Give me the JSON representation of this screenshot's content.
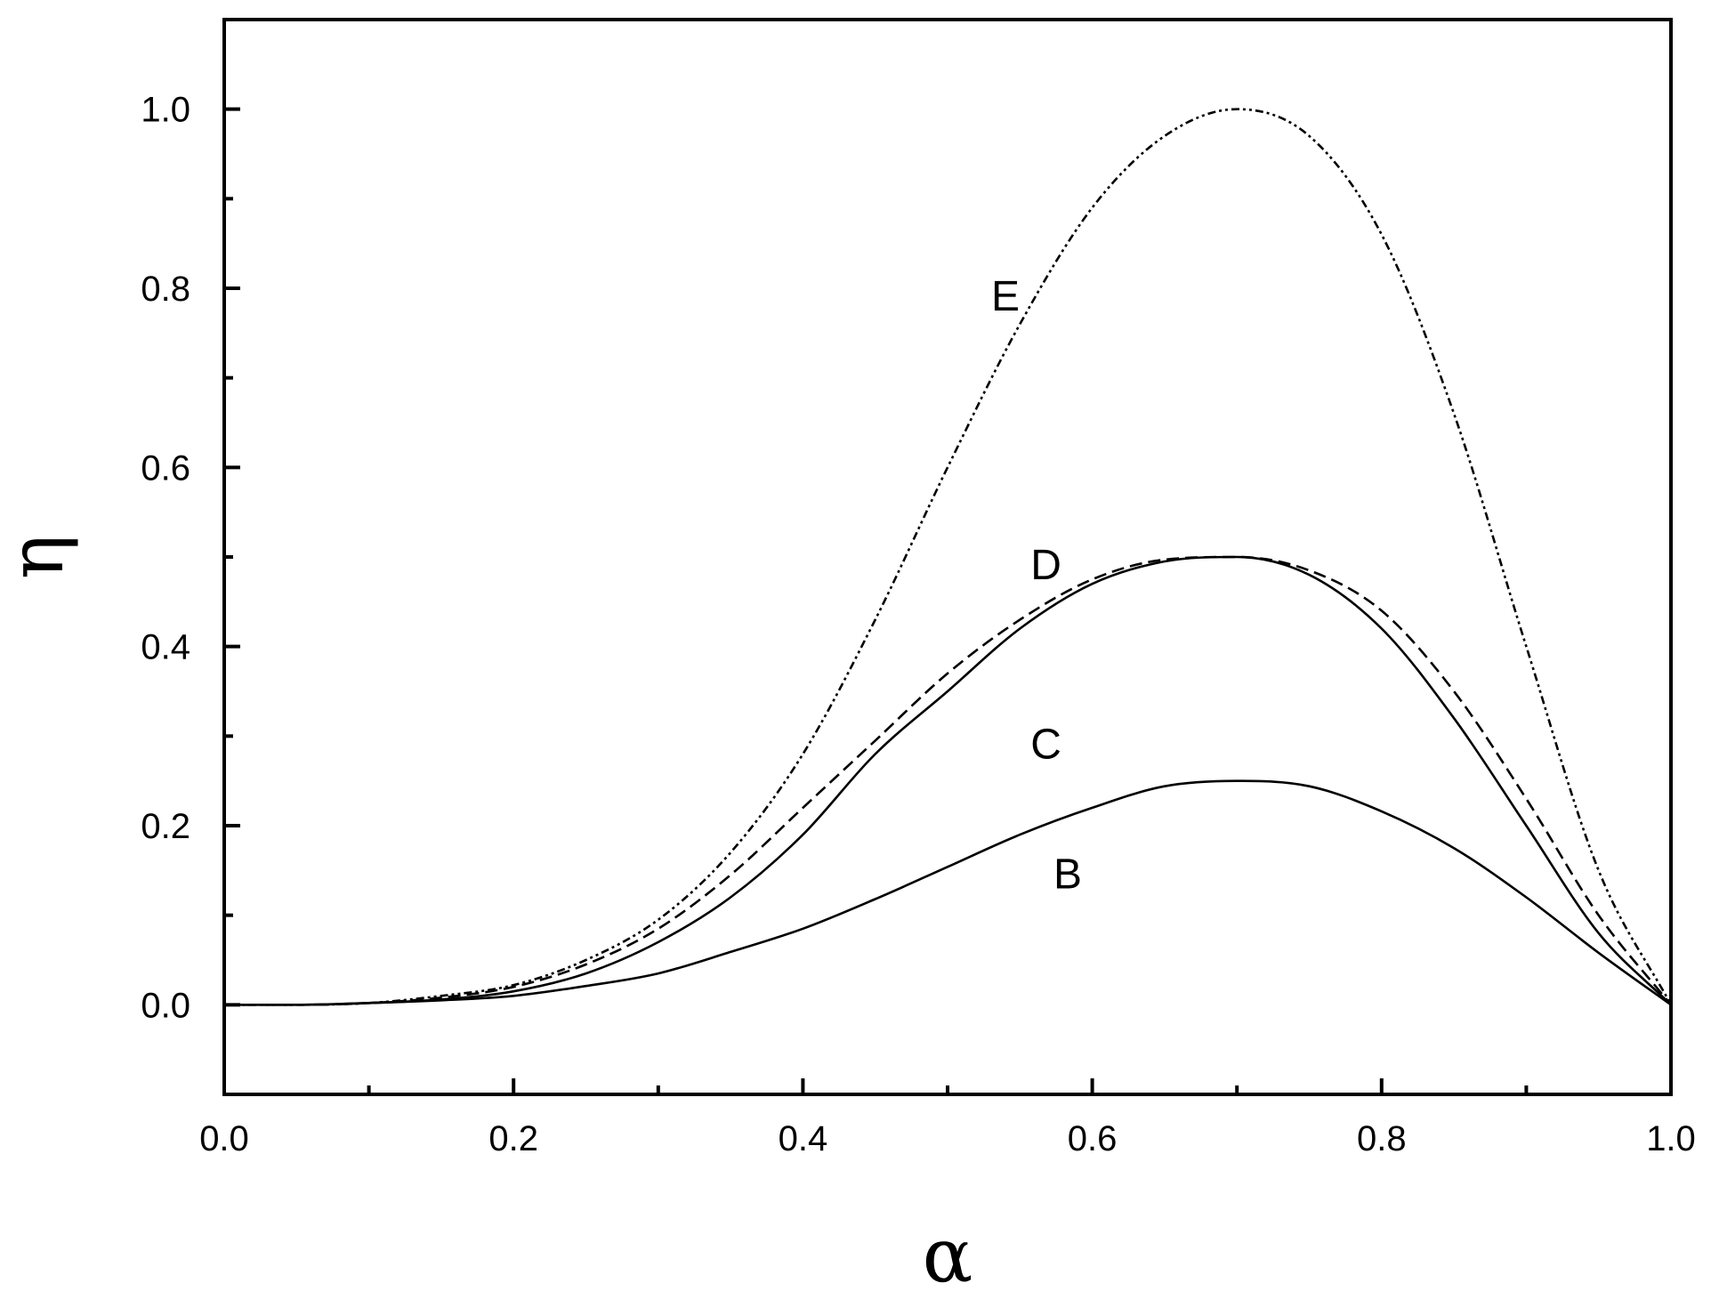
{
  "chart_data": {
    "type": "line",
    "title": "",
    "xlabel": "α",
    "ylabel": "η",
    "xlim": [
      0.0,
      1.0
    ],
    "ylim": [
      -0.1,
      1.1
    ],
    "x_ticks": [
      0.0,
      0.2,
      0.4,
      0.6,
      0.8,
      1.0
    ],
    "x_tick_labels": [
      "0.0",
      "0.2",
      "0.4",
      "0.6",
      "0.8",
      "1.0"
    ],
    "x_minor_ticks": [
      0.1,
      0.3,
      0.5,
      0.7,
      0.9
    ],
    "y_ticks": [
      0.0,
      0.2,
      0.4,
      0.6,
      0.8,
      1.0
    ],
    "y_tick_labels": [
      "0.0",
      "0.2",
      "0.4",
      "0.6",
      "0.8",
      "1.0"
    ],
    "y_minor_ticks": [
      -0.1,
      0.1,
      0.3,
      0.5,
      0.7,
      0.9,
      1.1
    ],
    "grid": false,
    "legend": "none",
    "x": [
      0.0,
      0.05,
      0.1,
      0.15,
      0.2,
      0.25,
      0.3,
      0.35,
      0.4,
      0.45,
      0.5,
      0.55,
      0.6,
      0.65,
      0.7,
      0.75,
      0.8,
      0.85,
      0.9,
      0.95,
      1.0
    ],
    "series": [
      {
        "name": "B",
        "style": "solid",
        "color": "#000000",
        "values": [
          0.0,
          0.0,
          0.002,
          0.005,
          0.01,
          0.021,
          0.035,
          0.059,
          0.085,
          0.118,
          0.154,
          0.19,
          0.22,
          0.244,
          0.25,
          0.244,
          0.216,
          0.175,
          0.12,
          0.058,
          0.0
        ]
      },
      {
        "name": "C",
        "style": "solid",
        "color": "#000000",
        "values": [
          0.0,
          0.0,
          0.002,
          0.006,
          0.015,
          0.035,
          0.07,
          0.12,
          0.19,
          0.28,
          0.35,
          0.42,
          0.47,
          0.495,
          0.5,
          0.48,
          0.42,
          0.32,
          0.2,
          0.08,
          0.0
        ]
      },
      {
        "name": "D",
        "style": "dashed",
        "color": "#000000",
        "values": [
          0.0,
          0.0,
          0.002,
          0.008,
          0.02,
          0.045,
          0.085,
          0.145,
          0.22,
          0.295,
          0.37,
          0.43,
          0.475,
          0.497,
          0.5,
          0.485,
          0.44,
          0.35,
          0.23,
          0.1,
          0.0
        ]
      },
      {
        "name": "E",
        "style": "dash-dot-dot",
        "color": "#000000",
        "values": [
          0.0,
          0.0,
          0.002,
          0.01,
          0.022,
          0.05,
          0.095,
          0.17,
          0.28,
          0.43,
          0.6,
          0.76,
          0.89,
          0.97,
          1.0,
          0.97,
          0.86,
          0.66,
          0.4,
          0.15,
          0.0
        ]
      }
    ],
    "annotations": [
      {
        "text": "E",
        "x": 0.54,
        "y": 0.775
      },
      {
        "text": "D",
        "x": 0.568,
        "y": 0.475
      },
      {
        "text": "C",
        "x": 0.568,
        "y": 0.275
      },
      {
        "text": "B",
        "x": 0.583,
        "y": 0.13
      }
    ]
  }
}
